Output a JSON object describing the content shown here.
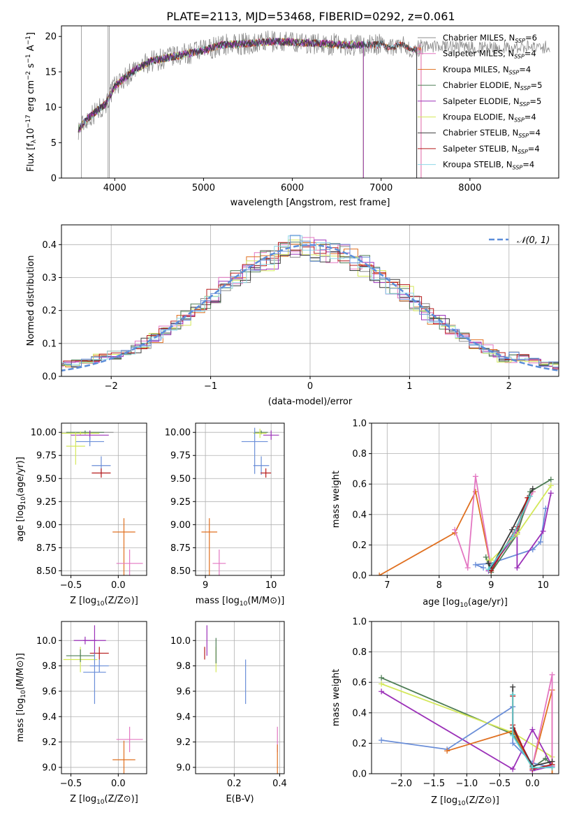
{
  "title": "PLATE=2113, MJD=53468, FIBERID=0292, z=0.061",
  "colors": {
    "Chabrier MILES": "#8c8c8c",
    "Salpeter MILES": "#e377c2",
    "Kroupa MILES": "#e07020",
    "Chabrier ELODIE": "#4e7d55",
    "Salpeter ELODIE": "#9b30b8",
    "Kroupa ELODIE": "#d4e85a",
    "Chabrier STELIB": "#3a3a3a",
    "Salpeter STELIB": "#b51a1a",
    "Kroupa STELIB": "#8ed8e8",
    "extra_blue": "#6a8ed8",
    "extra_teal": "#5fcfd0",
    "normal": "#5b8dd9"
  },
  "chart_data": [
    {
      "panel": "spectrum",
      "type": "line",
      "xlabel": "wavelength [Angstrom, rest frame]",
      "ylabel": "Flux [f",
      "ylabel_parts": [
        "Flux [f",
        "λ",
        "10",
        "−17",
        " erg cm",
        "−2",
        " s",
        "−1",
        " A",
        "−1",
        "]"
      ],
      "xlim": [
        3400,
        9000
      ],
      "ylim": [
        0,
        21.5
      ],
      "xticks": [
        4000,
        5000,
        6000,
        7000,
        8000
      ],
      "yticks": [
        0,
        5,
        10,
        15,
        20
      ],
      "grid": false,
      "legend_position": "right",
      "legend": [
        {
          "label": "Chabrier MILES, N",
          "n": "6"
        },
        {
          "label": "Salpeter MILES, N",
          "n": "4"
        },
        {
          "label": "Kroupa MILES, N",
          "n": "4"
        },
        {
          "label": "Chabrier ELODIE, N",
          "n": "5"
        },
        {
          "label": "Salpeter ELODIE, N",
          "n": "5"
        },
        {
          "label": "Kroupa ELODIE, N",
          "n": "4"
        },
        {
          "label": "Chabrier STELIB, N",
          "n": "4"
        },
        {
          "label": "Salpeter STELIB, N",
          "n": "4"
        },
        {
          "label": "Kroupa STELIB, N",
          "n": "4"
        }
      ],
      "legend_sub": "SSP",
      "continuum": {
        "x": [
          3600,
          3700,
          3800,
          3900,
          4000,
          4100,
          4200,
          4400,
          4600,
          4800,
          5000,
          5200,
          5500,
          5800,
          6000,
          6300,
          6600,
          7000,
          7300,
          7500
        ],
        "y": [
          7,
          8.5,
          9.5,
          10.5,
          13,
          14,
          15,
          16.5,
          17,
          17.5,
          18,
          18.8,
          19,
          19.3,
          19.2,
          19,
          18.8,
          18.8,
          18.5,
          18.2
        ]
      }
    },
    {
      "panel": "residual-histogram",
      "type": "step",
      "xlabel": "(data-model)/error",
      "ylabel": "Normed distribution",
      "xlim": [
        -2.5,
        2.5
      ],
      "ylim": [
        0,
        0.46
      ],
      "xticks": [
        -2,
        -1,
        0,
        1,
        2
      ],
      "yticks": [
        0.0,
        0.1,
        0.2,
        0.3,
        0.4
      ],
      "grid": true,
      "legend_position": "top-right",
      "legend": [
        "𝒩(0, 1)"
      ]
    },
    {
      "panel": "age-vs-Z",
      "type": "errorbar",
      "xlabel": "Z [log10(Z/Z⊙)]",
      "ylabel": "age  [log10(age/yr)]",
      "xlim": [
        -0.6,
        0.3
      ],
      "ylim": [
        8.45,
        10.1
      ],
      "xticks": [
        -0.5,
        0.0
      ],
      "yticks": [
        8.5,
        8.75,
        9.0,
        9.25,
        9.5,
        9.75,
        10.0
      ],
      "grid": true,
      "points": [
        {
          "c": "Chabrier MILES",
          "x": -0.3,
          "y": 10.0,
          "xe": 0.25,
          "ye": 0.02
        },
        {
          "c": "Chabrier ELODIE",
          "x": -0.35,
          "y": 10.0,
          "xe": 0.2,
          "ye": 0.02
        },
        {
          "c": "Kroupa ELODIE",
          "x": -0.4,
          "y": 9.99,
          "xe": 0.2,
          "ye": 0.02
        },
        {
          "c": "Salpeter ELODIE",
          "x": -0.3,
          "y": 9.97,
          "xe": 0.2,
          "ye": 0.05
        },
        {
          "c": "extra_blue",
          "x": -0.3,
          "y": 9.9,
          "xe": 0.15,
          "ye": 0.05
        },
        {
          "c": "Kroupa ELODIE",
          "x": -0.45,
          "y": 9.85,
          "xe": 0.1,
          "ye": 0.2
        },
        {
          "c": "extra_blue",
          "x": -0.18,
          "y": 9.64,
          "xe": 0.1,
          "ye": 0.1
        },
        {
          "c": "Salpeter STELIB",
          "x": -0.18,
          "y": 9.56,
          "xe": 0.1,
          "ye": 0.05
        },
        {
          "c": "Kroupa MILES",
          "x": 0.06,
          "y": 8.92,
          "xe": 0.12,
          "ye": 0.85
        },
        {
          "c": "Salpeter MILES",
          "x": 0.12,
          "y": 8.58,
          "xe": 0.14,
          "ye": 1.15
        }
      ]
    },
    {
      "panel": "age-vs-mass",
      "type": "errorbar",
      "xlabel": "mass [log10(M/M⊙)]",
      "ylabel": "",
      "xlim": [
        8.85,
        10.2
      ],
      "ylim": [
        8.45,
        10.1
      ],
      "xticks": [
        9,
        10
      ],
      "yticks": [
        8.5,
        8.75,
        9.0,
        9.25,
        9.5,
        9.75,
        10.0
      ],
      "grid": true,
      "points": [
        {
          "c": "Chabrier ELODIE",
          "x": 9.85,
          "y": 10.0,
          "xe": 0.1,
          "ye": 0.02
        },
        {
          "c": "Salpeter ELODIE",
          "x": 10.0,
          "y": 9.97,
          "xe": 0.12,
          "ye": 0.05
        },
        {
          "c": "Kroupa ELODIE",
          "x": 9.83,
          "y": 9.99,
          "xe": 0.1,
          "ye": 0.05
        },
        {
          "c": "extra_blue",
          "x": 9.75,
          "y": 9.9,
          "xe": 0.2,
          "ye": 0.35
        },
        {
          "c": "extra_blue",
          "x": 9.85,
          "y": 9.64,
          "xe": 0.12,
          "ye": 0.1
        },
        {
          "c": "Salpeter STELIB",
          "x": 9.92,
          "y": 9.56,
          "xe": 0.08,
          "ye": 0.05
        },
        {
          "c": "Kroupa MILES",
          "x": 9.06,
          "y": 8.92,
          "xe": 0.12,
          "ye": 0.85
        },
        {
          "c": "Salpeter MILES",
          "x": 9.21,
          "y": 8.58,
          "xe": 0.1,
          "ye": 1.15
        }
      ]
    },
    {
      "panel": "weight-vs-age",
      "type": "line",
      "xlabel": "age  [log10(age/yr)]",
      "ylabel": "mass weight",
      "xlim": [
        6.7,
        10.3
      ],
      "ylim": [
        0,
        1.0
      ],
      "xticks": [
        7,
        8,
        9,
        10
      ],
      "yticks": [
        0.0,
        0.2,
        0.4,
        0.6,
        0.8,
        1.0
      ],
      "grid": true,
      "series": [
        {
          "c": "Kroupa MILES",
          "x": [
            6.85,
            8.3,
            8.7,
            9.0,
            9.5,
            9.8
          ],
          "y": [
            0.0,
            0.28,
            0.55,
            0.05,
            0.3,
            0.55
          ]
        },
        {
          "c": "Salpeter MILES",
          "x": [
            8.3,
            8.55,
            8.7,
            9.0,
            9.5,
            9.8
          ],
          "y": [
            0.3,
            0.05,
            0.65,
            0.05,
            0.3,
            0.55
          ]
        },
        {
          "c": "extra_blue",
          "x": [
            8.85,
            8.7,
            9.0,
            9.8,
            9.95,
            10.05
          ],
          "y": [
            0.05,
            0.07,
            0.08,
            0.17,
            0.22,
            0.44
          ]
        },
        {
          "c": "Chabrier ELODIE",
          "x": [
            8.9,
            9.0,
            9.5,
            9.75,
            10.15
          ],
          "y": [
            0.12,
            0.02,
            0.27,
            0.55,
            0.63
          ]
        },
        {
          "c": "Salpeter ELODIE",
          "x": [
            8.95,
            9.5,
            9.5,
            10.0,
            10.15
          ],
          "y": [
            0.03,
            0.28,
            0.05,
            0.29,
            0.54
          ]
        },
        {
          "c": "Kroupa ELODIE",
          "x": [
            8.95,
            9.0,
            9.5,
            10.15
          ],
          "y": [
            0.1,
            0.1,
            0.27,
            0.59
          ]
        },
        {
          "c": "Chabrier STELIB",
          "x": [
            8.95,
            9.0,
            9.4,
            9.8
          ],
          "y": [
            0.08,
            0.05,
            0.3,
            0.57
          ]
        },
        {
          "c": "Salpeter STELIB",
          "x": [
            9.0,
            9.5,
            9.7
          ],
          "y": [
            0.03,
            0.32,
            0.51
          ]
        },
        {
          "c": "extra_teal",
          "x": [
            8.95,
            9.4,
            9.75
          ],
          "y": [
            0.04,
            0.25,
            0.52
          ]
        }
      ]
    },
    {
      "panel": "mass-vs-Z",
      "type": "errorbar",
      "xlabel": "Z [log10(Z/Z⊙)]",
      "ylabel": "mass [log10(M/M⊙)]",
      "xlim": [
        -0.6,
        0.3
      ],
      "ylim": [
        8.95,
        10.15
      ],
      "xticks": [
        -0.5,
        0.0
      ],
      "yticks": [
        9.0,
        9.2,
        9.4,
        9.6,
        9.8,
        10.0
      ],
      "grid": true,
      "points": [
        {
          "c": "Salpeter ELODIE",
          "x": -0.35,
          "y": 10.0,
          "xe": 0.12,
          "ye": 0.03
        },
        {
          "c": "Salpeter ELODIE",
          "x": -0.25,
          "y": 10.0,
          "xe": 0.12,
          "ye": 0.12
        },
        {
          "c": "Salpeter STELIB",
          "x": -0.2,
          "y": 9.9,
          "xe": 0.1,
          "ye": 0.05
        },
        {
          "c": "Kroupa ELODIE",
          "x": -0.4,
          "y": 9.85,
          "xe": 0.18,
          "ye": 0.1
        },
        {
          "c": "Chabrier ELODIE",
          "x": -0.4,
          "y": 9.88,
          "xe": 0.15,
          "ye": 0.05
        },
        {
          "c": "extra_blue",
          "x": -0.25,
          "y": 9.75,
          "xe": 0.12,
          "ye": 0.25
        },
        {
          "c": "extra_blue",
          "x": -0.2,
          "y": 9.8,
          "xe": 0.1,
          "ye": 0.05
        },
        {
          "c": "Salpeter MILES",
          "x": 0.12,
          "y": 9.22,
          "xe": 0.14,
          "ye": 0.1
        },
        {
          "c": "Kroupa MILES",
          "x": 0.06,
          "y": 9.06,
          "xe": 0.12,
          "ye": 0.18
        }
      ]
    },
    {
      "panel": "mass-vs-EBV",
      "type": "errorbar",
      "xlabel": "E(B-V)",
      "ylabel": "",
      "xlim": [
        0.03,
        0.42
      ],
      "ylim": [
        8.95,
        10.15
      ],
      "xticks": [
        0.2,
        0.4
      ],
      "yticks": [
        9.0,
        9.2,
        9.4,
        9.6,
        9.8,
        10.0
      ],
      "grid": true,
      "points": [
        {
          "c": "Salpeter ELODIE",
          "x": 0.08,
          "y": 10.0,
          "xe": 0,
          "ye": 0.12
        },
        {
          "c": "Salpeter STELIB",
          "x": 0.07,
          "y": 9.9,
          "xe": 0,
          "ye": 0.05
        },
        {
          "c": "Kroupa ELODIE",
          "x": 0.12,
          "y": 9.85,
          "xe": 0,
          "ye": 0.1
        },
        {
          "c": "Chabrier ELODIE",
          "x": 0.12,
          "y": 9.92,
          "xe": 0,
          "ye": 0.1
        },
        {
          "c": "extra_blue",
          "x": 0.25,
          "y": 9.7,
          "xe": 0,
          "ye": 0.2
        },
        {
          "c": "Salpeter MILES",
          "x": 0.39,
          "y": 9.22,
          "xe": 0,
          "ye": 0.1
        },
        {
          "c": "Kroupa MILES",
          "x": 0.39,
          "y": 9.06,
          "xe": 0,
          "ye": 0.12
        }
      ]
    },
    {
      "panel": "weight-vs-Z",
      "type": "line",
      "xlabel": "Z [log10(Z/Z⊙)]",
      "ylabel": "mass weight",
      "xlim": [
        -2.45,
        0.4
      ],
      "ylim": [
        0,
        1.0
      ],
      "xticks": [
        -2.0,
        -1.5,
        -1.0,
        -0.5,
        0.0
      ],
      "yticks": [
        0.0,
        0.2,
        0.4,
        0.6,
        0.8,
        1.0
      ],
      "grid": true,
      "series": [
        {
          "c": "Chabrier ELODIE",
          "x": [
            -2.3,
            -0.3,
            0.0,
            0.2,
            0.3
          ],
          "y": [
            0.63,
            0.26,
            0.04,
            0.1,
            0.05
          ]
        },
        {
          "c": "Kroupa ELODIE",
          "x": [
            -2.3,
            -0.3,
            0.3
          ],
          "y": [
            0.59,
            0.27,
            0.11
          ]
        },
        {
          "c": "Salpeter ELODIE",
          "x": [
            -2.3,
            -0.3,
            0.0,
            0.3,
            0.0
          ],
          "y": [
            0.54,
            0.03,
            0.29,
            0.05,
            0.02
          ]
        },
        {
          "c": "extra_blue",
          "x": [
            -2.3,
            -1.3,
            -0.3,
            -0.3,
            0.0,
            0.3
          ],
          "y": [
            0.22,
            0.16,
            0.44,
            0.2,
            0.07,
            0.04
          ]
        },
        {
          "c": "Kroupa MILES",
          "x": [
            -1.3,
            -0.3,
            0.0,
            0.3,
            0.3
          ],
          "y": [
            0.15,
            0.28,
            0.05,
            0.55,
            0.0
          ]
        },
        {
          "c": "Salpeter MILES",
          "x": [
            -0.3,
            0.0,
            0.3,
            0.3
          ],
          "y": [
            0.3,
            0.05,
            0.65,
            0.05
          ]
        },
        {
          "c": "Chabrier STELIB",
          "x": [
            -0.3,
            -0.3,
            0.0,
            0.3
          ],
          "y": [
            0.57,
            0.3,
            0.05,
            0.08
          ]
        },
        {
          "c": "Salpeter STELIB",
          "x": [
            -0.3,
            -0.3,
            0.0,
            0.3
          ],
          "y": [
            0.51,
            0.32,
            0.03,
            0.06
          ]
        },
        {
          "c": "extra_teal",
          "x": [
            -0.3,
            -0.3,
            0.0,
            0.3
          ],
          "y": [
            0.52,
            0.25,
            0.04,
            0.04
          ]
        }
      ]
    }
  ]
}
